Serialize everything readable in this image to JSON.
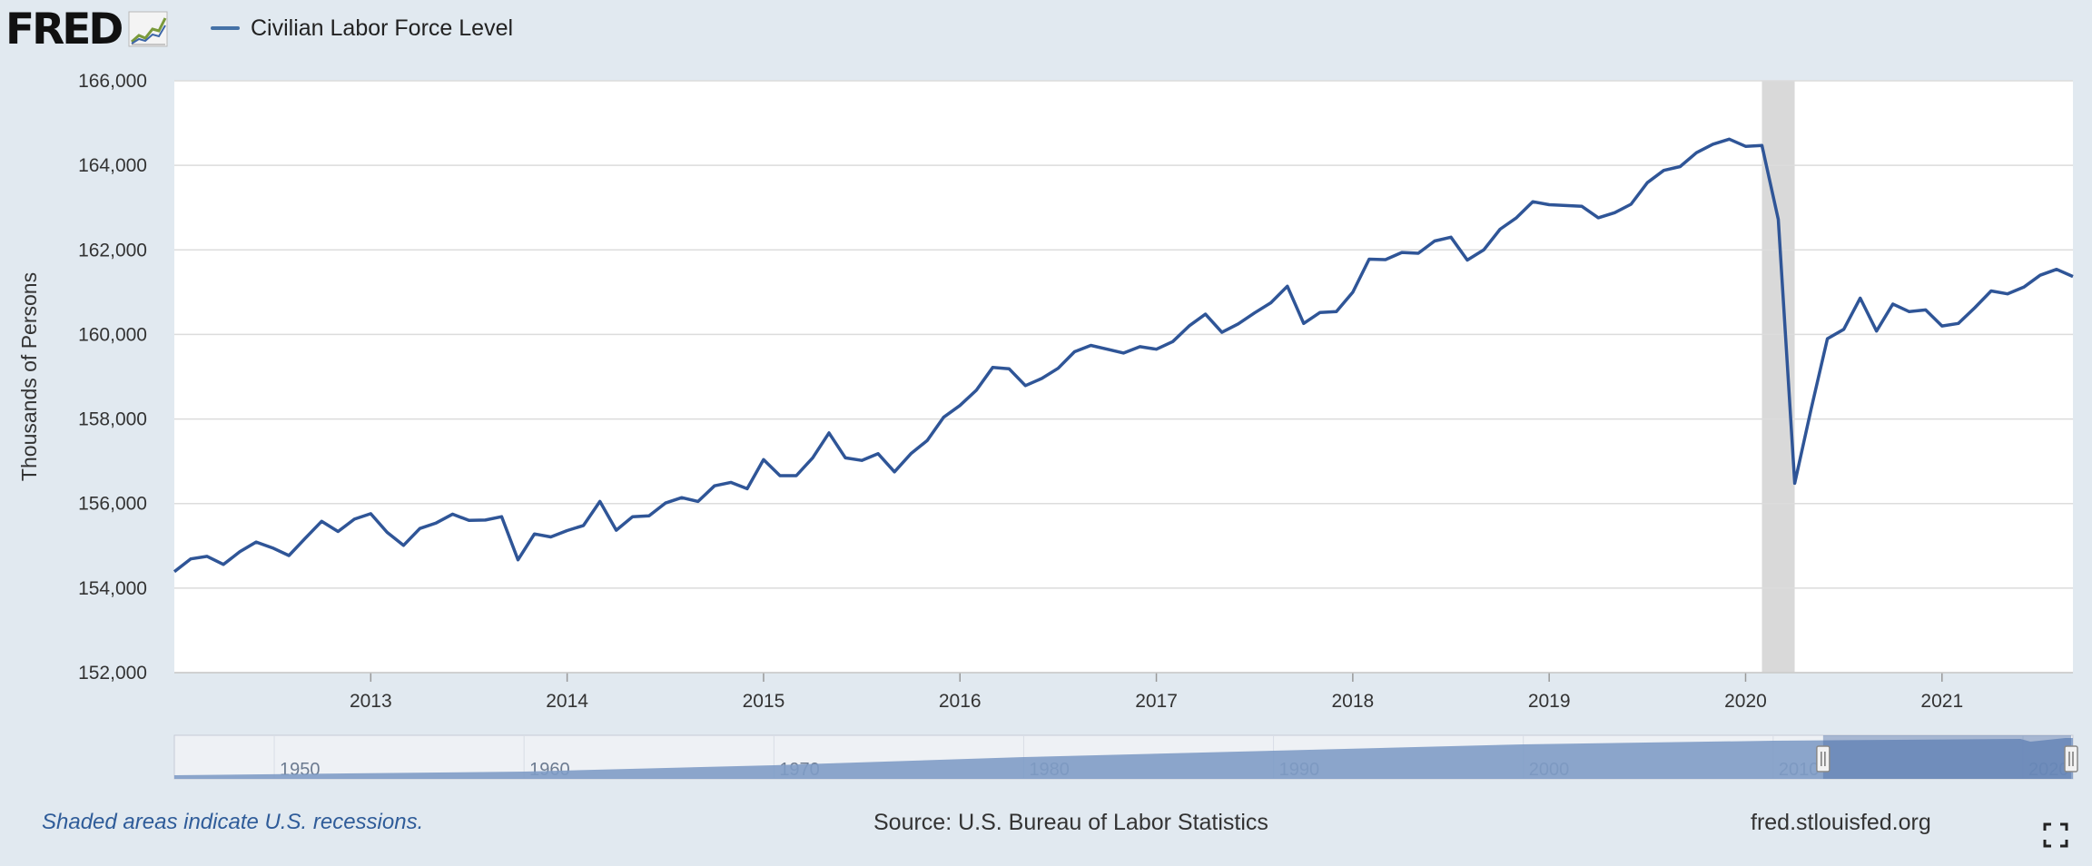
{
  "header": {
    "logo_text": "FRED",
    "legend_label": "Civilian Labor Force Level"
  },
  "footer": {
    "note": "Shaded areas indicate U.S. recessions.",
    "source": "Source: U.S. Bureau of Labor Statistics",
    "site": "fred.stlouisfed.org"
  },
  "icons": {
    "logo_graph": "line-graph-icon",
    "fullscreen": "fullscreen-icon"
  },
  "colors": {
    "series": "#2f5597",
    "recession": "#d9d9d9",
    "background": "#e1e9f0",
    "navigator_fill": "#7f9cc7"
  },
  "chart_data": {
    "type": "line",
    "title": "",
    "xlabel": "",
    "ylabel": "Thousands of Persons",
    "ylim": [
      152000,
      166000
    ],
    "yticks": [
      "152,000",
      "154,000",
      "156,000",
      "158,000",
      "160,000",
      "162,000",
      "164,000",
      "166,000"
    ],
    "xtick_labels": [
      "2013",
      "2014",
      "2015",
      "2016",
      "2017",
      "2018",
      "2019",
      "2020",
      "2021"
    ],
    "grid": true,
    "frequency": "monthly",
    "x_start": "2012-01",
    "x_end": "2021-09",
    "recession_shading": {
      "start": "2020-02",
      "end": "2020-04"
    },
    "series": [
      {
        "name": "Civilian Labor Force Level",
        "x": [
          "2012-01",
          "2012-02",
          "2012-03",
          "2012-04",
          "2012-05",
          "2012-06",
          "2012-07",
          "2012-08",
          "2012-09",
          "2012-10",
          "2012-11",
          "2012-12",
          "2013-01",
          "2013-02",
          "2013-03",
          "2013-04",
          "2013-05",
          "2013-06",
          "2013-07",
          "2013-08",
          "2013-09",
          "2013-10",
          "2013-11",
          "2013-12",
          "2014-01",
          "2014-02",
          "2014-03",
          "2014-04",
          "2014-05",
          "2014-06",
          "2014-07",
          "2014-08",
          "2014-09",
          "2014-10",
          "2014-11",
          "2014-12",
          "2015-01",
          "2015-02",
          "2015-03",
          "2015-04",
          "2015-05",
          "2015-06",
          "2015-07",
          "2015-08",
          "2015-09",
          "2015-10",
          "2015-11",
          "2015-12",
          "2016-01",
          "2016-02",
          "2016-03",
          "2016-04",
          "2016-05",
          "2016-06",
          "2016-07",
          "2016-08",
          "2016-09",
          "2016-10",
          "2016-11",
          "2016-12",
          "2017-01",
          "2017-02",
          "2017-03",
          "2017-04",
          "2017-05",
          "2017-06",
          "2017-07",
          "2017-08",
          "2017-09",
          "2017-10",
          "2017-11",
          "2017-12",
          "2018-01",
          "2018-02",
          "2018-03",
          "2018-04",
          "2018-05",
          "2018-06",
          "2018-07",
          "2018-08",
          "2018-09",
          "2018-10",
          "2018-11",
          "2018-12",
          "2019-01",
          "2019-02",
          "2019-03",
          "2019-04",
          "2019-05",
          "2019-06",
          "2019-07",
          "2019-08",
          "2019-09",
          "2019-10",
          "2019-11",
          "2019-12",
          "2020-01",
          "2020-02",
          "2020-03",
          "2020-04",
          "2020-05",
          "2020-06",
          "2020-07",
          "2020-08",
          "2020-09",
          "2020-10",
          "2020-11",
          "2020-12",
          "2021-01",
          "2021-02",
          "2021-03",
          "2021-04",
          "2021-05",
          "2021-06",
          "2021-07",
          "2021-08",
          "2021-09"
        ],
        "values": [
          154390,
          154690,
          154750,
          154560,
          154860,
          155090,
          154950,
          154770,
          155180,
          155580,
          155340,
          155630,
          155760,
          155320,
          155010,
          155410,
          155540,
          155750,
          155600,
          155610,
          155690,
          154670,
          155280,
          155210,
          155360,
          155480,
          156050,
          155370,
          155690,
          155710,
          156010,
          156140,
          156050,
          156420,
          156500,
          156350,
          157040,
          156660,
          156660,
          157080,
          157670,
          157080,
          157020,
          157180,
          156750,
          157180,
          157490,
          158040,
          158320,
          158680,
          159220,
          159190,
          158790,
          158960,
          159200,
          159590,
          159740,
          159650,
          159560,
          159710,
          159650,
          159830,
          160200,
          160480,
          160050,
          160250,
          160510,
          160750,
          161140,
          160260,
          160520,
          160540,
          161000,
          161780,
          161770,
          161940,
          161920,
          162210,
          162300,
          161760,
          162000,
          162490,
          162760,
          163140,
          163070,
          163050,
          163030,
          162760,
          162880,
          163080,
          163590,
          163880,
          163970,
          164300,
          164500,
          164620,
          164450,
          164470,
          162720,
          156480,
          158230,
          159900,
          160120,
          160860,
          160080,
          160720,
          160540,
          160580,
          160200,
          160260,
          160630,
          161030,
          160960,
          161120,
          161400,
          161540,
          161370
        ]
      }
    ]
  },
  "navigator": {
    "tick_labels": [
      "1950",
      "1960",
      "1970",
      "1980",
      "1990",
      "2000",
      "2010",
      "2020"
    ]
  }
}
